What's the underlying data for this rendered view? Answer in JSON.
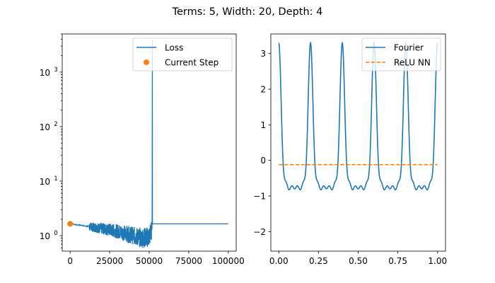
{
  "chart_data": [
    {
      "type": "line",
      "title": "Terms: 5, Width: 20, Depth: 4",
      "yscale": "log",
      "xlim": [
        -5000,
        105000
      ],
      "ylim": [
        0.52,
        5000
      ],
      "xticks": [
        0,
        25000,
        50000,
        75000,
        100000
      ],
      "xtick_labels": [
        "0",
        "25000",
        "50000",
        "75000",
        "100000"
      ],
      "yticks": [
        1,
        10,
        100,
        1000
      ],
      "ytick_labels": [
        "10",
        "10",
        "10",
        "10"
      ],
      "ytick_exponents": [
        "0",
        "1",
        "2",
        "3"
      ],
      "legend": {
        "location": "upper right"
      },
      "series": [
        {
          "name": "Loss",
          "color": "#1f77b4",
          "description_points": {
            "x": [
              0,
              5000,
              10000,
              15000,
              20000,
              25000,
              30000,
              35000,
              40000,
              45000,
              50000,
              51500,
              51800,
              52000,
              100000
            ],
            "y": [
              1.65,
              1.58,
              1.5,
              1.42,
              1.35,
              1.28,
              1.2,
              1.1,
              1.0,
              0.9,
              0.95,
              1.3,
              3000,
              1.65,
              1.65
            ]
          },
          "noise_band": {
            "x_start": 12000,
            "x_end": 51500,
            "low": 0.6,
            "high": 1.75
          }
        },
        {
          "name": "Current Step",
          "color": "#ff7f0e",
          "marker": "circle",
          "x": [
            0
          ],
          "y": [
            1.65
          ]
        }
      ]
    },
    {
      "type": "line",
      "xlim": [
        -0.05,
        1.05
      ],
      "ylim": [
        -2.55,
        3.55
      ],
      "xticks": [
        0.0,
        0.25,
        0.5,
        0.75,
        1.0
      ],
      "xtick_labels": [
        "0.00",
        "0.25",
        "0.50",
        "0.75",
        "1.00"
      ],
      "yticks": [
        -2,
        -1,
        0,
        1,
        2,
        3
      ],
      "ytick_labels": [
        "−2",
        "−1",
        "0",
        "1",
        "2",
        "3"
      ],
      "legend": {
        "location": "upper right"
      },
      "series": [
        {
          "name": "Fourier",
          "color": "#1f77b4",
          "function": {
            "period": 0.2,
            "harmonics": [
              {
                "k": 1,
                "a": 1.35,
                "phase": 0.0
              },
              {
                "k": 2,
                "a": 0.95,
                "phase": 0.0
              },
              {
                "k": 3,
                "a": 0.55,
                "phase": 0.0
              },
              {
                "k": 4,
                "a": 0.3,
                "phase": 0.0
              },
              {
                "k": 5,
                "a": 0.15,
                "phase": 0.0
              }
            ],
            "x_range": [
              0.0,
              1.0
            ]
          }
        },
        {
          "name": "ReLU NN",
          "color": "#ff7f0e",
          "style": "dashed",
          "x": [
            0.0,
            1.0
          ],
          "y": [
            -0.12,
            -0.12
          ]
        }
      ]
    }
  ]
}
